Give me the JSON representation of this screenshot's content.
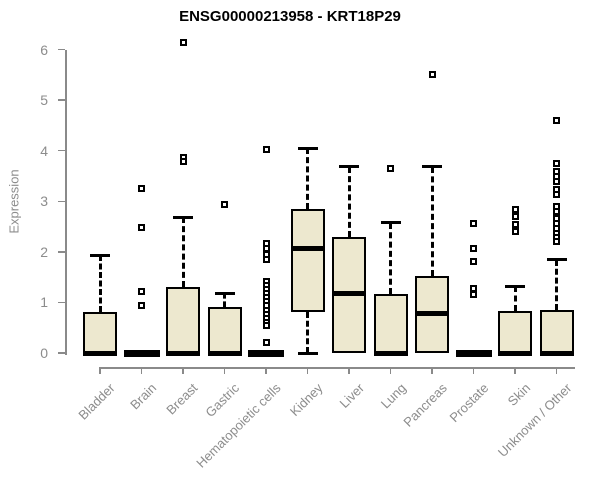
{
  "figure": {
    "title": "ENSG00000213958 - KRT18P29",
    "ylabel": "Expression"
  },
  "chart_data": {
    "type": "boxplot",
    "title": "ENSG00000213958 - KRT18P29",
    "xlabel": "",
    "ylabel": "Expression",
    "ylim": [
      0,
      6
    ],
    "yticks": [
      0,
      1,
      2,
      3,
      4,
      5,
      6
    ],
    "grid": false,
    "legend": false,
    "categories": [
      "Bladder",
      "Brain",
      "Breast",
      "Gastric",
      "Hematopoietic cells",
      "Kidney",
      "Liver",
      "Lung",
      "Pancreas",
      "Prostate",
      "Skin",
      "Unknown / Other"
    ],
    "boxes": [
      {
        "category": "Bladder",
        "q1": 0,
        "median": 0,
        "q3": 0.82,
        "whisker_low": 0,
        "whisker_high": 1.93,
        "outliers": []
      },
      {
        "category": "Brain",
        "q1": 0,
        "median": 0,
        "q3": 0,
        "whisker_low": 0,
        "whisker_high": 0,
        "outliers": [
          3.26,
          2.48,
          1.21,
          0.93
        ]
      },
      {
        "category": "Breast",
        "q1": 0,
        "median": 0,
        "q3": 1.31,
        "whisker_low": 0,
        "whisker_high": 2.68,
        "outliers": [
          6.14,
          3.87,
          3.78
        ]
      },
      {
        "category": "Gastric",
        "q1": 0,
        "median": 0,
        "q3": 0.9,
        "whisker_low": 0,
        "whisker_high": 1.18,
        "outliers": [
          2.93
        ]
      },
      {
        "category": "Hematopoietic cells",
        "q1": 0,
        "median": 0,
        "q3": 0,
        "whisker_low": 0,
        "whisker_high": 0,
        "outliers": [
          4.03,
          2.17,
          2.07,
          1.94,
          1.84,
          1.41,
          1.33,
          1.25,
          1.17,
          1.09,
          1.01,
          0.93,
          0.85,
          0.77,
          0.69,
          0.61,
          0.55,
          0.21
        ]
      },
      {
        "category": "Kidney",
        "q1": 0.82,
        "median": 2.07,
        "q3": 2.84,
        "whisker_low": 0,
        "whisker_high": 4.05,
        "outliers": []
      },
      {
        "category": "Liver",
        "q1": 0,
        "median": 1.18,
        "q3": 2.3,
        "whisker_low": 0,
        "whisker_high": 3.68,
        "outliers": []
      },
      {
        "category": "Lung",
        "q1": 0,
        "median": 0,
        "q3": 1.17,
        "whisker_low": 0,
        "whisker_high": 2.58,
        "outliers": [
          3.65
        ]
      },
      {
        "category": "Pancreas",
        "q1": 0,
        "median": 0.78,
        "q3": 1.52,
        "whisker_low": 0,
        "whisker_high": 3.68,
        "outliers": [
          5.51
        ]
      },
      {
        "category": "Prostate",
        "q1": 0,
        "median": 0,
        "q3": 0,
        "whisker_low": 0,
        "whisker_high": 0,
        "outliers": [
          2.56,
          2.07,
          1.8,
          1.28,
          1.16
        ]
      },
      {
        "category": "Skin",
        "q1": 0,
        "median": 0,
        "q3": 0.84,
        "whisker_low": 0,
        "whisker_high": 1.32,
        "outliers": [
          2.83,
          2.7,
          2.55,
          2.4
        ]
      },
      {
        "category": "Unknown / Other",
        "q1": 0,
        "median": 0,
        "q3": 0.85,
        "whisker_low": 0,
        "whisker_high": 1.84,
        "outliers": [
          4.6,
          3.74,
          3.58,
          3.48,
          3.39,
          3.23,
          3.14,
          2.89,
          2.79,
          2.66,
          2.56,
          2.46,
          2.36,
          2.28,
          2.2
        ]
      }
    ],
    "colors": {
      "box_fill": "#ede8cf",
      "box_border": "#000000",
      "median": "#000000",
      "whisker": "#000000",
      "outlier_border": "#000000",
      "axis": "#8a8a8a",
      "tick_label": "#8c8c8c",
      "title": "#000000"
    }
  }
}
